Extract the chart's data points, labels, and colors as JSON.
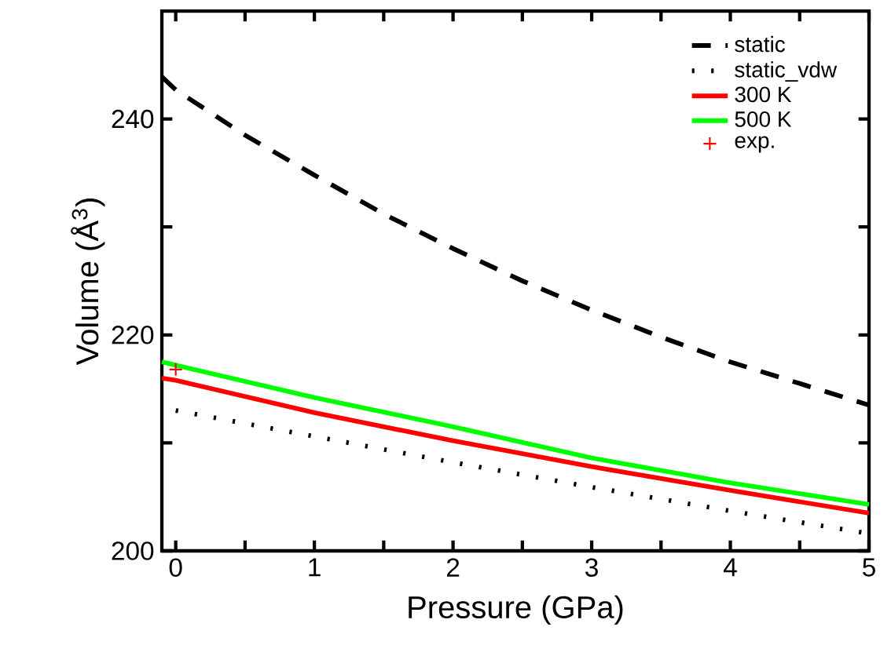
{
  "chart_data": {
    "type": "line",
    "xlabel": "Pressure (GPa)",
    "ylabel": "Volume (Å$^{3}$)",
    "xlim": [
      -0.1,
      5
    ],
    "ylim": [
      200,
      250
    ],
    "xticks": [
      0,
      {
        "value": 0.5,
        "label": null
      },
      1,
      {
        "value": 1.5,
        "label": null
      },
      2,
      {
        "value": 2.5,
        "label": null
      },
      3,
      {
        "value": 3.5,
        "label": null
      },
      4,
      {
        "value": 4.5,
        "label": null
      },
      5
    ],
    "yticks": [
      200,
      {
        "value": 210,
        "label": null
      },
      220,
      {
        "value": 230,
        "label": null
      },
      240
    ],
    "legend": "top right",
    "series": [
      {
        "name": "static",
        "color": "#000000",
        "line_style": "dashed",
        "x": [
          -0.1,
          0,
          0.5,
          1,
          1.5,
          2,
          2.5,
          3,
          3.5,
          4,
          4.5,
          5
        ],
        "values": [
          243.9,
          242.7,
          238.5,
          234.8,
          231.2,
          228.0,
          225.0,
          222.3,
          219.8,
          217.5,
          215.5,
          213.5
        ]
      },
      {
        "name": "static_vdw",
        "color": "#000000",
        "line_style": "dotted",
        "x": [
          0,
          1,
          2,
          3,
          4,
          5
        ],
        "values": [
          213.0,
          210.6,
          208.2,
          205.9,
          203.7,
          201.6
        ]
      },
      {
        "name": "300 K",
        "color": "#ff0000",
        "line_style": "solid",
        "x": [
          -0.1,
          0,
          1,
          2,
          3,
          4,
          5
        ],
        "values": [
          216.0,
          215.8,
          212.8,
          210.2,
          207.8,
          205.6,
          203.5
        ]
      },
      {
        "name": "500 K",
        "color": "#00ff00",
        "line_style": "solid",
        "x": [
          -0.1,
          0,
          1,
          2,
          3,
          4,
          5
        ],
        "values": [
          217.5,
          217.2,
          214.2,
          211.5,
          208.6,
          206.3,
          204.3
        ]
      },
      {
        "name": "exp.",
        "type": "scatter",
        "color": "#ff0000",
        "marker": "cross",
        "x": [
          0
        ],
        "values": [
          216.8
        ]
      }
    ]
  }
}
